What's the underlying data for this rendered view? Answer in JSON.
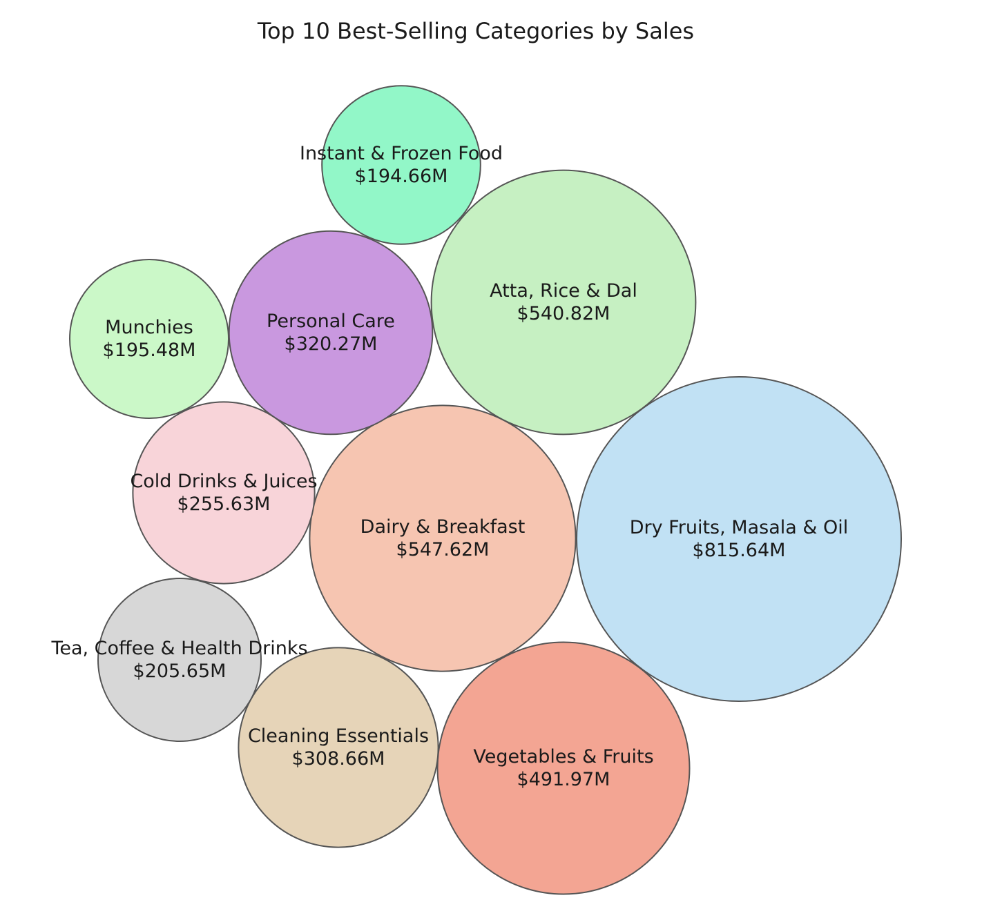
{
  "chart_data": {
    "type": "bubble",
    "title": "Top 10 Best-Selling Categories by Sales",
    "unit_prefix": "$",
    "unit_suffix": "M",
    "series": [
      {
        "name": "Dry Fruits, Masala & Oil",
        "value": 815.64,
        "label": "$815.64M",
        "color": "#c1e1f4"
      },
      {
        "name": "Dairy & Breakfast",
        "value": 547.62,
        "label": "$547.62M",
        "color": "#f6c5b1"
      },
      {
        "name": "Atta, Rice & Dal",
        "value": 540.82,
        "label": "$540.82M",
        "color": "#c6f0c2"
      },
      {
        "name": "Vegetables & Fruits",
        "value": 491.97,
        "label": "$491.97M",
        "color": "#f3a593"
      },
      {
        "name": "Personal Care",
        "value": 320.27,
        "label": "$320.27M",
        "color": "#c998df"
      },
      {
        "name": "Cleaning Essentials",
        "value": 308.66,
        "label": "$308.66M",
        "color": "#e6d4b8"
      },
      {
        "name": "Cold Drinks & Juices",
        "value": 255.63,
        "label": "$255.63M",
        "color": "#f8d4d9"
      },
      {
        "name": "Tea, Coffee & Health Drinks",
        "value": 205.65,
        "label": "$205.65M",
        "color": "#d7d7d7"
      },
      {
        "name": "Munchies",
        "value": 195.48,
        "label": "$195.48M",
        "color": "#cbf8c8"
      },
      {
        "name": "Instant & Frozen Food",
        "value": 194.66,
        "label": "$194.66M",
        "color": "#92f7c8"
      }
    ]
  }
}
